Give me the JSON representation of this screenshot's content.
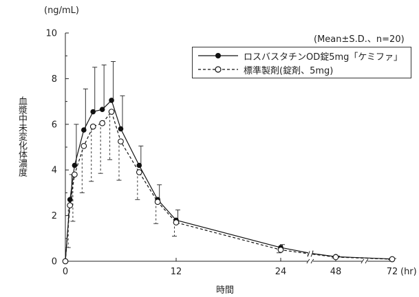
{
  "chart_data": {
    "type": "line",
    "unit_label": "(ng/mL)",
    "stats_note": "(Mean±S.D.、n=20)",
    "ylabel": "血漿中未変化体濃度",
    "xlabel": "時間",
    "x_unit": "(hr)",
    "x_tick_labels": [
      "0",
      "12",
      "24",
      "48",
      "72"
    ],
    "y_tick_labels": [
      "0",
      "2",
      "4",
      "6",
      "8",
      "10"
    ],
    "ylim": [
      0,
      10
    ],
    "x": [
      0,
      0.5,
      1,
      2,
      3,
      4,
      5,
      6,
      8,
      10,
      12,
      24,
      36,
      48,
      72
    ],
    "series": [
      {
        "name": "ロスバスタチンOD錠5mg「ケミファ」",
        "marker": "filled",
        "line": "solid",
        "values": [
          0.0,
          2.7,
          4.2,
          5.75,
          6.55,
          6.65,
          7.05,
          5.8,
          4.2,
          2.7,
          1.8,
          0.6,
          0.35,
          0.2,
          0.1
        ],
        "sd": [
          0,
          1.1,
          1.8,
          1.8,
          1.95,
          1.95,
          1.7,
          1.45,
          0.85,
          0.65,
          0.45,
          0.13,
          0,
          0.03,
          0.02
        ]
      },
      {
        "name": "標準製剤(錠剤、5mg)",
        "marker": "open",
        "line": "dashed",
        "values": [
          0.0,
          2.45,
          3.8,
          5.05,
          5.9,
          6.05,
          6.55,
          5.25,
          3.9,
          2.6,
          1.7,
          0.5,
          0.32,
          0.18,
          0.09
        ],
        "sd": [
          0,
          1.85,
          2.05,
          2.05,
          2.4,
          2.2,
          2.1,
          1.7,
          1.2,
          0.95,
          0.6,
          0.13,
          0,
          0.03,
          0.02
        ]
      }
    ],
    "axis_breaks_after_x": [
      24,
      48
    ]
  }
}
